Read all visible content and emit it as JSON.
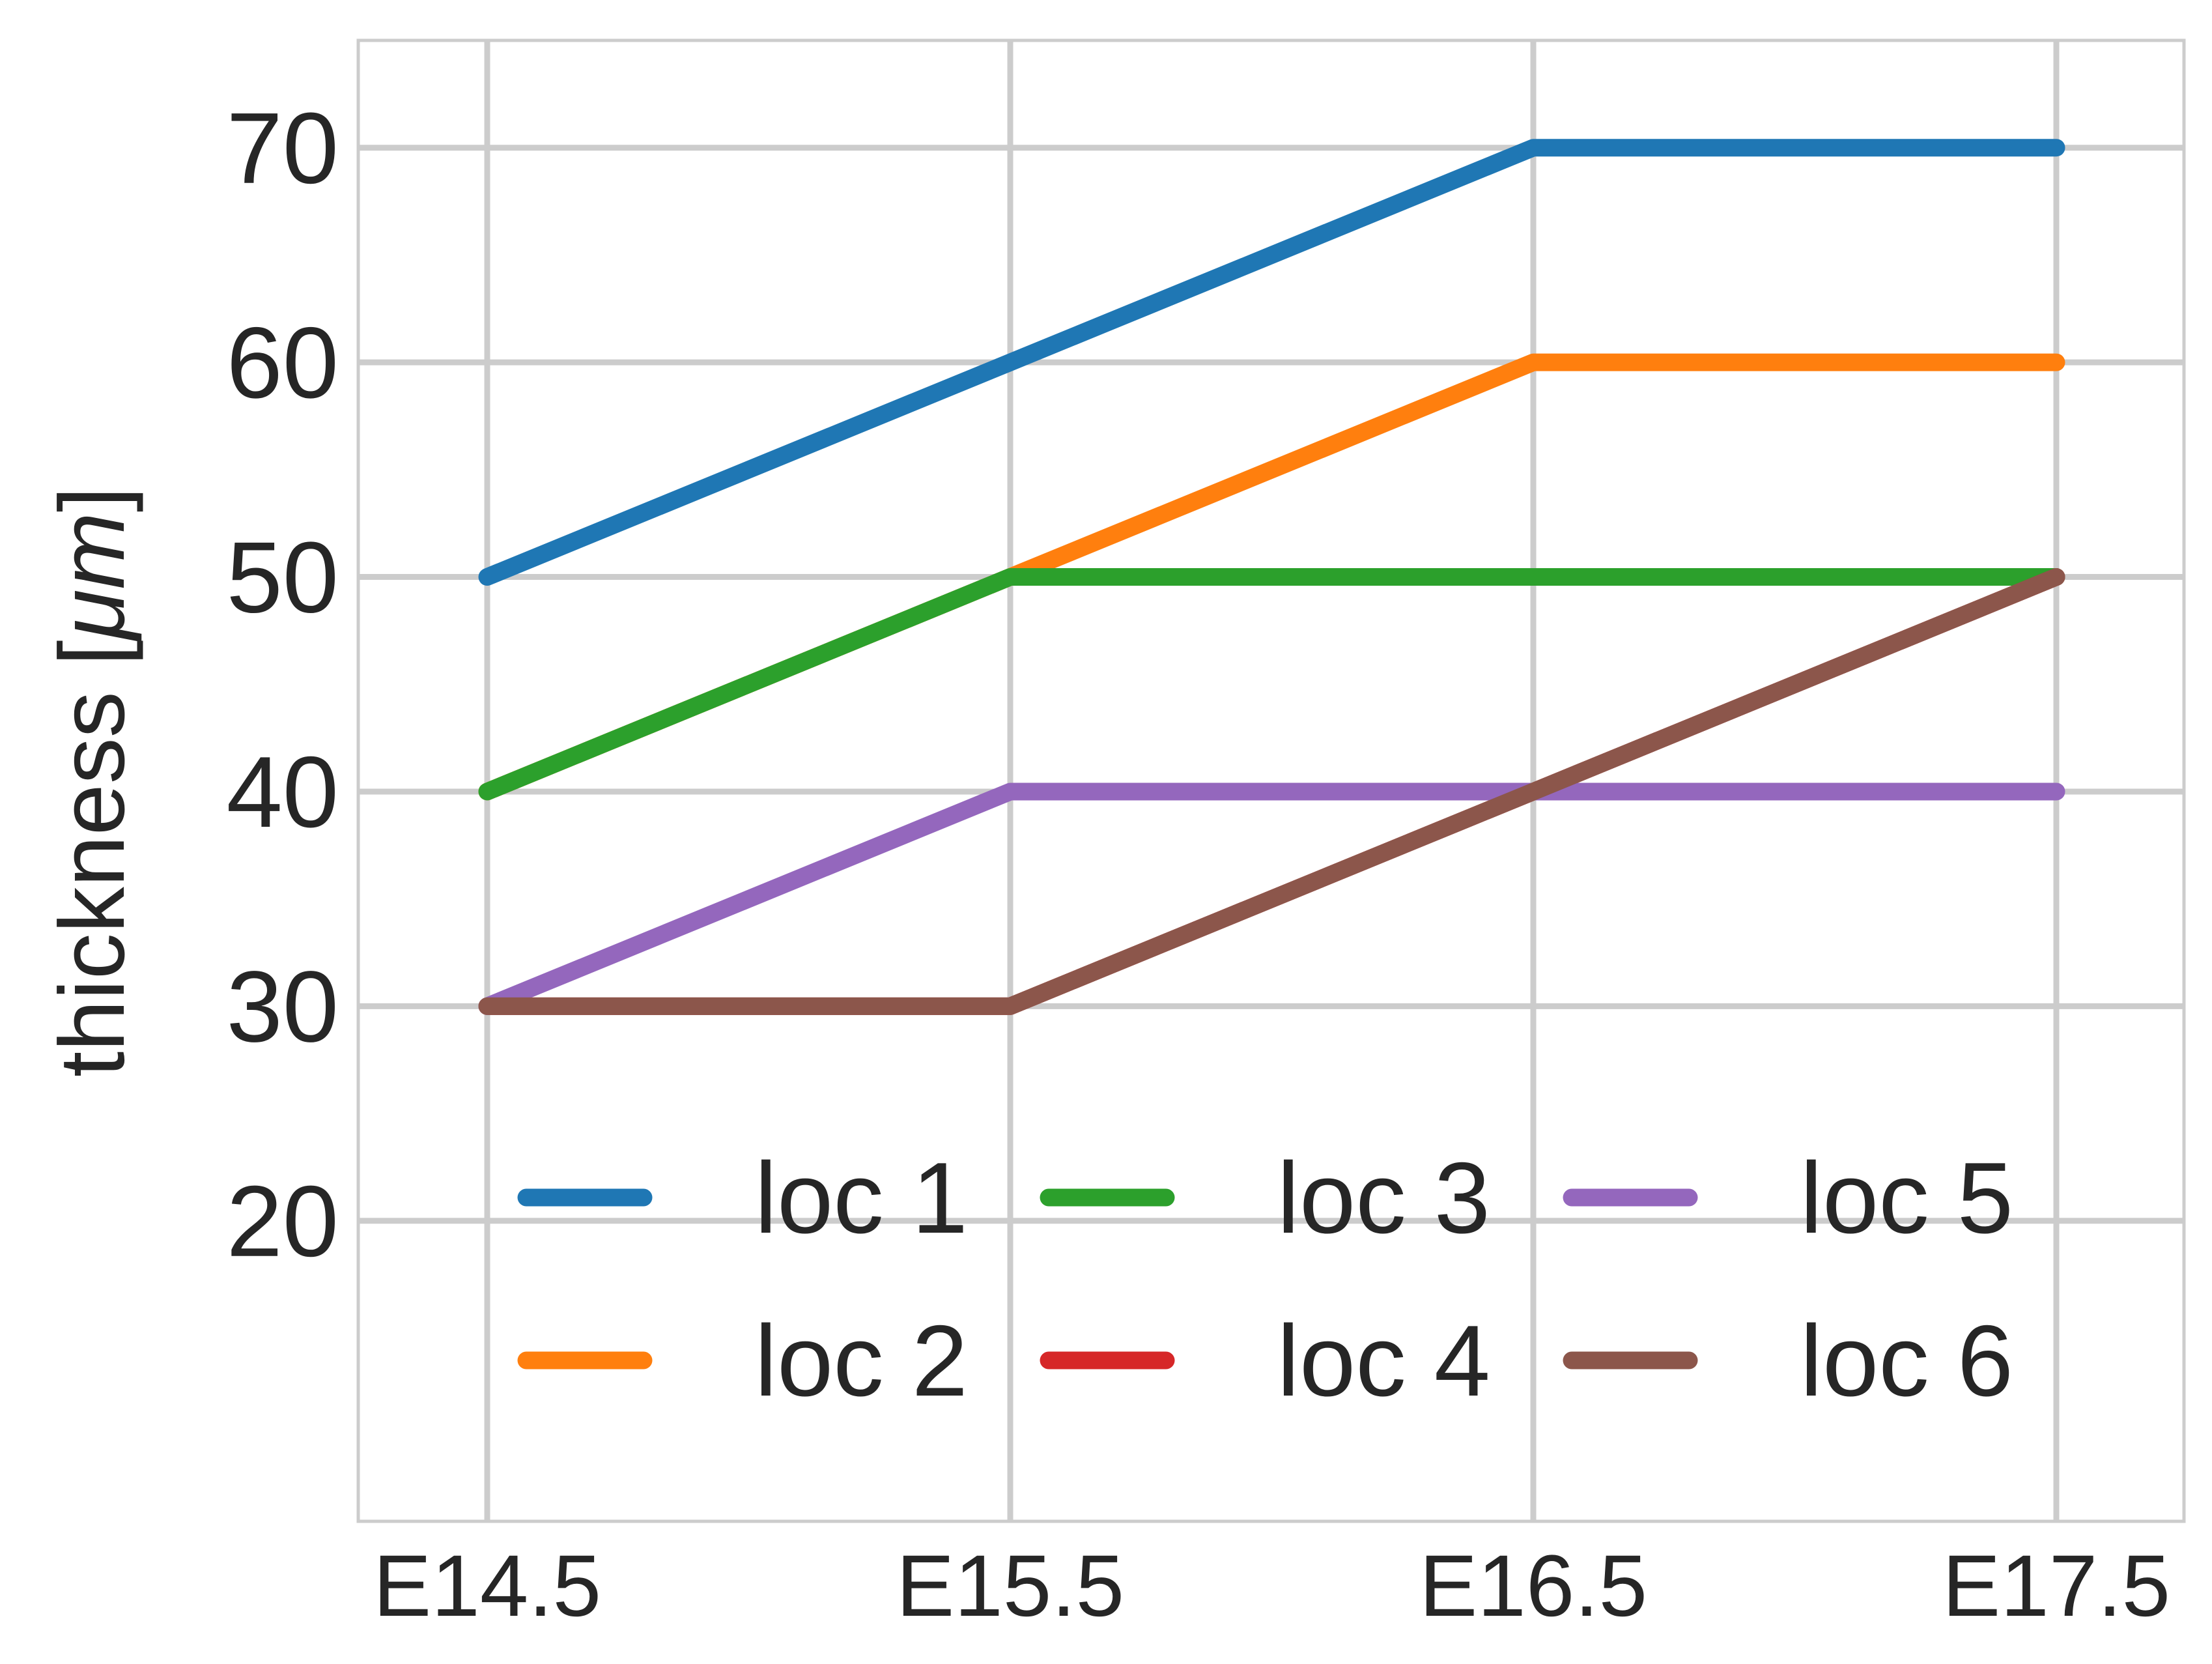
{
  "chart_data": {
    "type": "line",
    "title": "",
    "xlabel": "",
    "ylabel": "thickness [",
    "ylabel_unit": "μm",
    "ylabel_close": "]",
    "categories": [
      "E14.5",
      "E15.5",
      "E16.5",
      "E17.5"
    ],
    "ylim": [
      6,
      75
    ],
    "yticks": [
      20,
      30,
      40,
      50,
      60,
      70
    ],
    "grid": true,
    "legend_position": "lower center",
    "legend_columns": 3,
    "series": [
      {
        "name": "loc 1",
        "color": "#1f77b4",
        "values": [
          50,
          60,
          70,
          70
        ]
      },
      {
        "name": "loc 2",
        "color": "#ff7f0e",
        "values": [
          40,
          50,
          60,
          60
        ]
      },
      {
        "name": "loc 3",
        "color": "#2ca02c",
        "values": [
          40,
          50,
          50,
          50
        ]
      },
      {
        "name": "loc 4",
        "color": "#d62728",
        "values": [
          30,
          30,
          40,
          50
        ]
      },
      {
        "name": "loc 5",
        "color": "#9467bd",
        "values": [
          30,
          40,
          40,
          40
        ]
      },
      {
        "name": "loc 6",
        "color": "#8c564b",
        "values": [
          30,
          30,
          40,
          50
        ]
      }
    ]
  }
}
